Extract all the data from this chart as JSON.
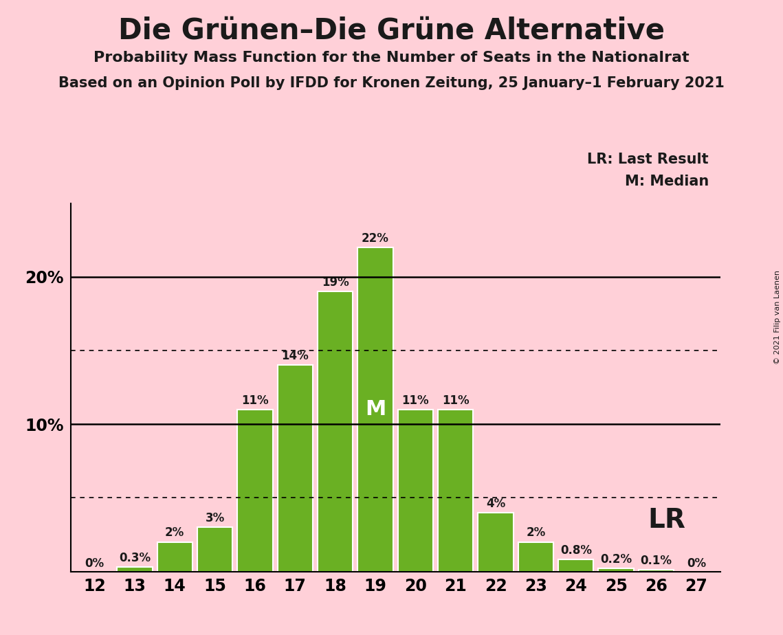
{
  "title": "Die Grünen–Die Grüne Alternative",
  "subtitle1": "Probability Mass Function for the Number of Seats in the Nationalrat",
  "subtitle2": "Based on an Opinion Poll by IFDD for Kronen Zeitung, 25 January–1 February 2021",
  "copyright": "© 2021 Filip van Laenen",
  "categories": [
    12,
    13,
    14,
    15,
    16,
    17,
    18,
    19,
    20,
    21,
    22,
    23,
    24,
    25,
    26,
    27
  ],
  "values": [
    0.0,
    0.3,
    2.0,
    3.0,
    11.0,
    14.0,
    19.0,
    22.0,
    11.0,
    11.0,
    4.0,
    2.0,
    0.8,
    0.2,
    0.1,
    0.0
  ],
  "bar_color": "#6ab023",
  "bar_edge_color": "#ffffff",
  "background_color": "#ffd0d8",
  "text_color": "#1a1a1a",
  "label_texts": [
    "0%",
    "0.3%",
    "2%",
    "3%",
    "11%",
    "14%",
    "19%",
    "22%",
    "11%",
    "11%",
    "4%",
    "2%",
    "0.8%",
    "0.2%",
    "0.1%",
    "0%"
  ],
  "median_seat": 19,
  "lr_seat": 26,
  "ylim": [
    0,
    25
  ],
  "solid_yticks": [
    10,
    20
  ],
  "dotted_yticks": [
    5,
    15
  ],
  "legend_lr": "LR: Last Result",
  "legend_m": "M: Median",
  "lr_label": "LR",
  "m_label": "M",
  "ytick_labeled": [
    10,
    20
  ],
  "ytick_label_map": {
    "10": "10%",
    "20": "20%"
  }
}
